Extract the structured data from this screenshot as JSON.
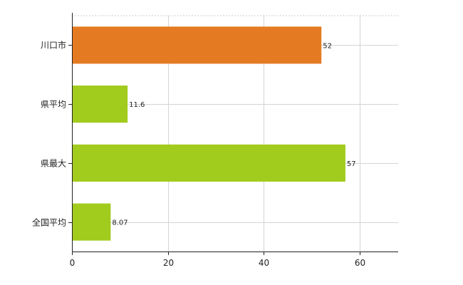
{
  "chart_data": {
    "type": "bar",
    "orientation": "horizontal",
    "categories": [
      "川口市",
      "県平均",
      "県最大",
      "全国平均"
    ],
    "values": [
      52,
      11.6,
      57,
      8.07
    ],
    "value_labels": [
      "52",
      "11.6",
      "57",
      "8.07"
    ],
    "bar_colors": [
      "#e47b22",
      "#a1cb1d",
      "#a1cb1d",
      "#a1cb1d"
    ],
    "xlim": [
      0,
      68
    ],
    "xticks": [
      0,
      20,
      40,
      60
    ],
    "grid": true,
    "title": "",
    "xlabel": "",
    "ylabel": ""
  }
}
